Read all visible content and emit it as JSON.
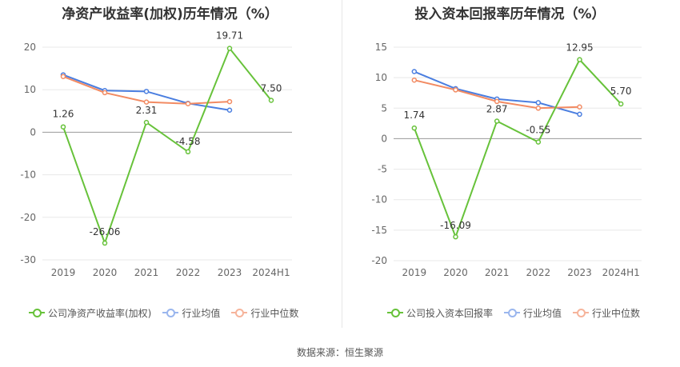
{
  "chart_data": [
    {
      "type": "line",
      "title": "净资产收益率(加权)历年情况（%）",
      "categories": [
        "2019",
        "2020",
        "2021",
        "2022",
        "2023",
        "2024H1"
      ],
      "ylim": [
        -30,
        20
      ],
      "yticks": [
        "20",
        "10",
        "0",
        "-10",
        "-20",
        "-30"
      ],
      "ytick_values": [
        20,
        10,
        0,
        -10,
        -20,
        -30
      ],
      "grid": true,
      "legend_position": "bottom",
      "series": [
        {
          "name": "公司净资产收益率(加权)",
          "color": "#67c23a",
          "values": [
            1.26,
            -26.06,
            2.31,
            -4.58,
            19.71,
            7.5
          ],
          "labels": [
            "1.26",
            "-26.06",
            "2.31",
            "-4.58",
            "19.71",
            "7.50"
          ]
        },
        {
          "name": "行业均值",
          "color": "#4a7ee0",
          "values": [
            13.5,
            9.8,
            9.6,
            6.8,
            5.2,
            null
          ]
        },
        {
          "name": "行业中位数",
          "color": "#f28b63",
          "values": [
            13.1,
            9.3,
            7.1,
            6.7,
            7.2,
            null
          ]
        }
      ]
    },
    {
      "type": "line",
      "title": "投入资本回报率历年情况（%）",
      "categories": [
        "2019",
        "2020",
        "2021",
        "2022",
        "2023",
        "2024H1"
      ],
      "ylim": [
        -20,
        15
      ],
      "yticks": [
        "15",
        "10",
        "5",
        "0",
        "-5",
        "-10",
        "-15",
        "-20"
      ],
      "ytick_values": [
        15,
        10,
        5,
        0,
        -5,
        -10,
        -15,
        -20
      ],
      "grid": true,
      "legend_position": "bottom",
      "series": [
        {
          "name": "公司投入资本回报率",
          "color": "#67c23a",
          "values": [
            1.74,
            -16.09,
            2.87,
            -0.55,
            12.95,
            5.7
          ],
          "labels": [
            "1.74",
            "-16.09",
            "2.87",
            "-0.55",
            "12.95",
            "5.70"
          ]
        },
        {
          "name": "行业均值",
          "color": "#4a7ee0",
          "values": [
            11.0,
            8.2,
            6.5,
            5.9,
            4.0,
            null
          ]
        },
        {
          "name": "行业中位数",
          "color": "#f28b63",
          "values": [
            9.6,
            8.0,
            6.1,
            5.0,
            5.2,
            null
          ]
        }
      ]
    }
  ],
  "source_text": "数据来源：恒生聚源"
}
